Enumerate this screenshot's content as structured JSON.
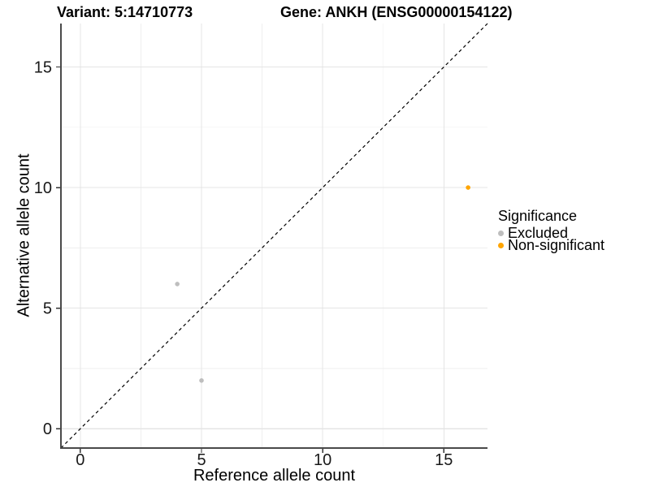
{
  "chart_data": {
    "type": "scatter",
    "title_left": "Variant: 5:14710773",
    "title_right": "Gene: ANKH (ENSG00000154122)",
    "xlabel": "Reference allele count",
    "ylabel": "Alternative allele count",
    "xlim": [
      -0.8,
      16.8
    ],
    "ylim": [
      -0.8,
      16.8
    ],
    "major_ticks": [
      0,
      5,
      10,
      15
    ],
    "minor_ticks": [
      2.5,
      7.5,
      12.5
    ],
    "grid": "on",
    "identity_line": "dashed y = x",
    "series": [
      {
        "name": "Excluded",
        "color": "#BEBEBE",
        "points": [
          [
            4,
            6
          ],
          [
            5,
            2
          ]
        ]
      },
      {
        "name": "Non-significant",
        "color": "#FFA500",
        "points": [
          [
            16,
            10
          ]
        ]
      }
    ],
    "legend": {
      "title": "Significance",
      "position": "right"
    }
  },
  "style": {
    "grid_major_color": "#E4E4E4",
    "grid_minor_color": "#EFEFEF",
    "axis_line_color": "#4A4A4A",
    "tick_mark_color": "#333333",
    "tick_label_color": "#191919",
    "identity_line_color": "#000000",
    "background_color": "#FFFFFF"
  }
}
